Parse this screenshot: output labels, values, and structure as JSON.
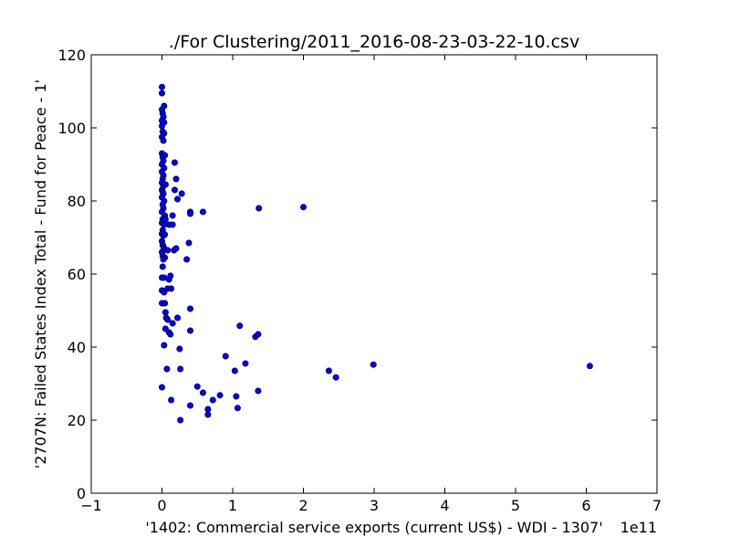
{
  "chart_data": {
    "type": "scatter",
    "title": "./For Clustering/2011_2016-08-23-03-22-10.csv",
    "xlabel": "'1402: Commercial service exports  (current US$) - WDI - 1307'",
    "ylabel": "'2707N: Failed States Index Total - Fund for Peace - 1'",
    "x_offset_label": "1e11",
    "xlim": [
      -1,
      7
    ],
    "ylim": [
      0,
      120
    ],
    "x_ticks": [
      -1,
      0,
      1,
      2,
      3,
      4,
      5,
      6,
      7
    ],
    "x_tick_labels": [
      "−1",
      "0",
      "1",
      "2",
      "3",
      "4",
      "5",
      "6",
      "7"
    ],
    "y_ticks": [
      0,
      20,
      40,
      60,
      80,
      100,
      120
    ],
    "y_tick_labels": [
      "0",
      "20",
      "40",
      "60",
      "80",
      "100",
      "120"
    ],
    "grid": false,
    "marker_color": "#0000ff",
    "points": [
      [
        0.0,
        111.2
      ],
      [
        0.0,
        109.5
      ],
      [
        0.03,
        106
      ],
      [
        0.0,
        105
      ],
      [
        0.01,
        104
      ],
      [
        0.02,
        103
      ],
      [
        0.0,
        102
      ],
      [
        0.03,
        101.5
      ],
      [
        0.0,
        100.5
      ],
      [
        0.01,
        99
      ],
      [
        0.03,
        98.5
      ],
      [
        0.0,
        97.5
      ],
      [
        0.02,
        96.5
      ],
      [
        0.0,
        93
      ],
      [
        0.04,
        92.5
      ],
      [
        0.01,
        92
      ],
      [
        0.02,
        91
      ],
      [
        0.0,
        90
      ],
      [
        0.03,
        89
      ],
      [
        0.0,
        88
      ],
      [
        0.02,
        87
      ],
      [
        0.01,
        86
      ],
      [
        0.0,
        85
      ],
      [
        0.02,
        84
      ],
      [
        0.05,
        84.5
      ],
      [
        0.0,
        83
      ],
      [
        0.01,
        82.5
      ],
      [
        0.02,
        82
      ],
      [
        0.0,
        81
      ],
      [
        0.03,
        80
      ],
      [
        0.01,
        79
      ],
      [
        0.02,
        78
      ],
      [
        0.0,
        77
      ],
      [
        0.04,
        76
      ],
      [
        0.01,
        75
      ],
      [
        0.02,
        74.5
      ],
      [
        0.0,
        74
      ],
      [
        0.05,
        75
      ],
      [
        0.03,
        73.5
      ],
      [
        0.01,
        72
      ],
      [
        0.0,
        71
      ],
      [
        0.02,
        70.5
      ],
      [
        0.04,
        70.8
      ],
      [
        0.0,
        69
      ],
      [
        0.01,
        68
      ],
      [
        0.02,
        67.5
      ],
      [
        0.03,
        67
      ],
      [
        0.0,
        66
      ],
      [
        0.01,
        65
      ],
      [
        0.04,
        64.5
      ],
      [
        0.02,
        64
      ],
      [
        0.01,
        62
      ],
      [
        0.0,
        59
      ],
      [
        0.03,
        59
      ],
      [
        0.1,
        58.5
      ],
      [
        0.12,
        59.5
      ],
      [
        0.0,
        55.5
      ],
      [
        0.03,
        55
      ],
      [
        0.08,
        56
      ],
      [
        0.13,
        56
      ],
      [
        0.0,
        52
      ],
      [
        0.04,
        52
      ],
      [
        0.05,
        49.5
      ],
      [
        0.06,
        48
      ],
      [
        0.08,
        47.5
      ],
      [
        0.15,
        46.5
      ],
      [
        0.05,
        45
      ],
      [
        0.1,
        44
      ],
      [
        0.12,
        43.5
      ],
      [
        0.03,
        40.5
      ],
      [
        0.07,
        34
      ],
      [
        0.0,
        29
      ],
      [
        0.13,
        25.5
      ],
      [
        0.1,
        73.5
      ],
      [
        0.15,
        73.5
      ],
      [
        0.08,
        66.5
      ],
      [
        0.17,
        66.5
      ],
      [
        0.15,
        76
      ],
      [
        0.18,
        90.5
      ],
      [
        0.2,
        86
      ],
      [
        0.18,
        83
      ],
      [
        0.22,
        80.5
      ],
      [
        0.28,
        82
      ],
      [
        0.2,
        67
      ],
      [
        0.22,
        48
      ],
      [
        0.25,
        39.5
      ],
      [
        0.26,
        34
      ],
      [
        0.26,
        20
      ],
      [
        0.35,
        64
      ],
      [
        0.38,
        68.5
      ],
      [
        0.4,
        77
      ],
      [
        0.4,
        76.5
      ],
      [
        0.4,
        50.5
      ],
      [
        0.4,
        44.5
      ],
      [
        0.4,
        24
      ],
      [
        0.5,
        29.2
      ],
      [
        0.58,
        77
      ],
      [
        0.58,
        27.5
      ],
      [
        0.65,
        23
      ],
      [
        0.65,
        21.5
      ],
      [
        0.72,
        25.5
      ],
      [
        0.82,
        26.8
      ],
      [
        0.9,
        37.5
      ],
      [
        1.03,
        33.5
      ],
      [
        1.05,
        26.5
      ],
      [
        1.07,
        23.3
      ],
      [
        1.1,
        45.8
      ],
      [
        1.18,
        35.5
      ],
      [
        1.32,
        42.8
      ],
      [
        1.36,
        43.5
      ],
      [
        1.37,
        78
      ],
      [
        1.36,
        28
      ],
      [
        2.0,
        78.3
      ],
      [
        2.36,
        33.5
      ],
      [
        2.46,
        31.7
      ],
      [
        2.99,
        35.2
      ],
      [
        6.05,
        34.8
      ]
    ]
  }
}
